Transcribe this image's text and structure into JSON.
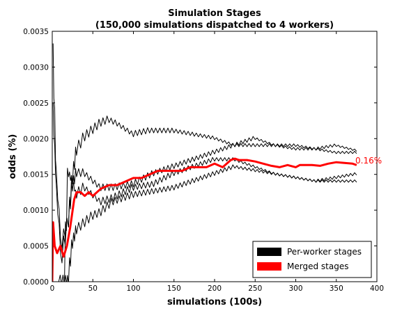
{
  "chart_data": {
    "type": "line",
    "title": "Simulation Stages",
    "subtitle": "(150,000 simulations dispatched to 4 workers)",
    "xlabel": "simulations (100s)",
    "ylabel": "odds (%)",
    "xlim": [
      0,
      400
    ],
    "ylim": [
      0,
      0.0035
    ],
    "xticks": [
      0,
      50,
      100,
      150,
      200,
      250,
      300,
      350,
      400
    ],
    "yticks": [
      "0.0000",
      "0.0005",
      "0.0010",
      "0.0015",
      "0.0020",
      "0.0025",
      "0.0030",
      "0.0035"
    ],
    "grid": false,
    "legend_position": "lower-right",
    "end_label": "0.16%",
    "series": [
      {
        "name": "Per-worker stages",
        "color": "#000000",
        "sawtooth": true,
        "x": [
          1,
          5,
          12,
          20,
          25,
          30,
          40,
          50,
          60,
          70,
          80,
          100,
          120,
          150,
          175,
          200,
          225,
          250,
          275,
          300,
          325,
          350,
          375
        ],
        "y": [
          0.00333,
          0.0016,
          0.0005,
          0.0008,
          0.0014,
          0.0018,
          0.002,
          0.0021,
          0.0022,
          0.00225,
          0.0022,
          0.00205,
          0.0021,
          0.0021,
          0.00205,
          0.002,
          0.0019,
          0.0019,
          0.0019,
          0.0019,
          0.00185,
          0.0019,
          0.00183
        ]
      },
      {
        "name": "Per-worker stages",
        "color": "#000000",
        "sawtooth": true,
        "x": [
          1,
          5,
          12,
          20,
          25,
          30,
          40,
          50,
          60,
          75,
          100,
          125,
          150,
          175,
          200,
          225,
          250,
          275,
          300,
          325,
          350,
          375
        ],
        "y": [
          0.0025,
          0.0014,
          0.0003,
          0.0008,
          0.0013,
          0.0015,
          0.0015,
          0.0014,
          0.0013,
          0.0013,
          0.00135,
          0.0015,
          0.0016,
          0.0017,
          0.0018,
          0.0019,
          0.002,
          0.0019,
          0.00185,
          0.00185,
          0.0018,
          0.0018
        ]
      },
      {
        "name": "Per-worker stages",
        "color": "#000000",
        "sawtooth": true,
        "x": [
          8,
          15,
          20,
          25,
          30,
          40,
          50,
          60,
          75,
          100,
          125,
          150,
          175,
          200,
          225,
          250,
          275,
          300,
          325,
          350,
          375
        ],
        "y": [
          0.0,
          0.0,
          0.0015,
          0.0014,
          0.0012,
          0.0013,
          0.0012,
          0.0011,
          0.00115,
          0.0013,
          0.00135,
          0.0015,
          0.0016,
          0.0017,
          0.0017,
          0.0016,
          0.0015,
          0.00145,
          0.0014,
          0.00145,
          0.0015
        ]
      },
      {
        "name": "Per-worker stages",
        "color": "#000000",
        "sawtooth": true,
        "x": [
          15,
          20,
          25,
          30,
          40,
          50,
          60,
          75,
          100,
          125,
          150,
          175,
          200,
          225,
          250,
          275,
          300,
          325,
          350,
          375
        ],
        "y": [
          0.0,
          0.0,
          0.0005,
          0.0007,
          0.0008,
          0.0009,
          0.00095,
          0.0011,
          0.0012,
          0.00125,
          0.0013,
          0.0014,
          0.0015,
          0.0016,
          0.00155,
          0.0015,
          0.00145,
          0.0014,
          0.0014,
          0.0014
        ]
      },
      {
        "name": "Merged stages",
        "color": "#ff0000",
        "sawtooth": false,
        "x": [
          0,
          1,
          3,
          6,
          10,
          14,
          18,
          22,
          27,
          30,
          35,
          40,
          45,
          50,
          55,
          60,
          70,
          80,
          90,
          100,
          110,
          120,
          130,
          140,
          150,
          160,
          170,
          180,
          190,
          200,
          210,
          220,
          225,
          230,
          240,
          250,
          260,
          270,
          280,
          290,
          300,
          305,
          310,
          320,
          330,
          340,
          350,
          360,
          370,
          375
        ],
        "y": [
          0.0,
          0.00083,
          0.0005,
          0.0004,
          0.0005,
          0.00035,
          0.0005,
          0.00075,
          0.00115,
          0.00125,
          0.00125,
          0.0012,
          0.00125,
          0.0012,
          0.00125,
          0.0013,
          0.00135,
          0.00135,
          0.0014,
          0.00145,
          0.00145,
          0.0015,
          0.00155,
          0.00155,
          0.00155,
          0.00155,
          0.0016,
          0.0016,
          0.0016,
          0.00165,
          0.0016,
          0.0017,
          0.00172,
          0.0017,
          0.0017,
          0.00168,
          0.00165,
          0.00162,
          0.0016,
          0.00163,
          0.0016,
          0.00163,
          0.00163,
          0.00163,
          0.00162,
          0.00165,
          0.00167,
          0.00166,
          0.00165,
          0.00163
        ]
      }
    ]
  }
}
